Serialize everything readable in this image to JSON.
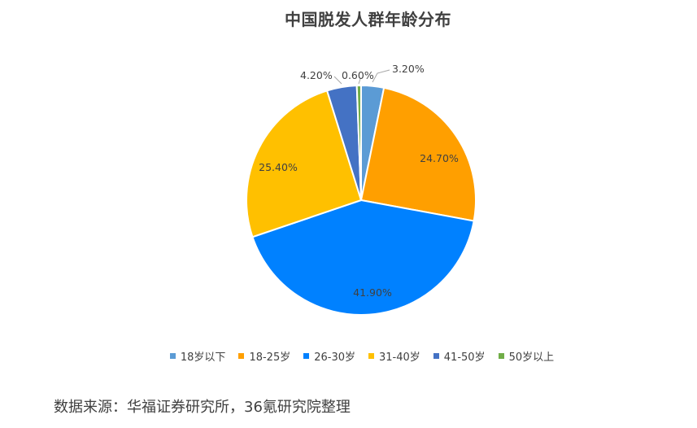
{
  "chart_data": {
    "type": "pie",
    "title": "中国脱发人群年龄分布",
    "categories": [
      "18岁以下",
      "18-25岁",
      "26-30岁",
      "31-40岁",
      "41-50岁",
      "50岁以上"
    ],
    "values": [
      3.2,
      24.7,
      41.9,
      25.4,
      4.2,
      0.6
    ],
    "labels": [
      "3.20%",
      "24.70%",
      "41.90%",
      "25.40%",
      "4.20%",
      "0.60%"
    ],
    "colors": [
      "#5B9BD5",
      "#FF9F00",
      "#0081FF",
      "#FFC000",
      "#4472C4",
      "#70AD47"
    ],
    "start_angle_deg": 0,
    "direction": "clockwise",
    "legend_position": "bottom"
  },
  "source_text": "数据来源：华福证券研究所，36氪研究院整理"
}
